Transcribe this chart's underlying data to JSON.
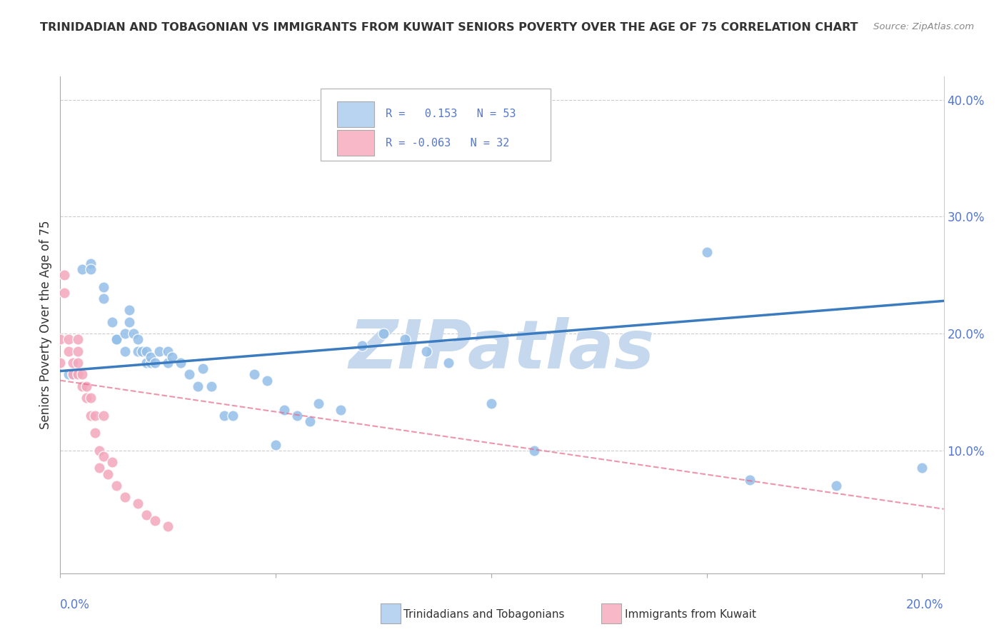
{
  "title": "TRINIDADIAN AND TOBAGONIAN VS IMMIGRANTS FROM KUWAIT SENIORS POVERTY OVER THE AGE OF 75 CORRELATION CHART",
  "source": "Source: ZipAtlas.com",
  "ylabel": "Seniors Poverty Over the Age of 75",
  "watermark": "ZIPatlas",
  "xlim": [
    0.0,
    0.205
  ],
  "ylim": [
    -0.005,
    0.42
  ],
  "blue_scatter": [
    [
      0.002,
      0.165
    ],
    [
      0.003,
      0.165
    ],
    [
      0.005,
      0.255
    ],
    [
      0.007,
      0.26
    ],
    [
      0.007,
      0.255
    ],
    [
      0.01,
      0.24
    ],
    [
      0.01,
      0.23
    ],
    [
      0.012,
      0.21
    ],
    [
      0.013,
      0.195
    ],
    [
      0.013,
      0.195
    ],
    [
      0.015,
      0.2
    ],
    [
      0.015,
      0.185
    ],
    [
      0.016,
      0.22
    ],
    [
      0.016,
      0.21
    ],
    [
      0.017,
      0.2
    ],
    [
      0.018,
      0.195
    ],
    [
      0.018,
      0.185
    ],
    [
      0.019,
      0.185
    ],
    [
      0.02,
      0.185
    ],
    [
      0.02,
      0.175
    ],
    [
      0.021,
      0.175
    ],
    [
      0.021,
      0.18
    ],
    [
      0.022,
      0.175
    ],
    [
      0.023,
      0.185
    ],
    [
      0.025,
      0.185
    ],
    [
      0.025,
      0.175
    ],
    [
      0.026,
      0.18
    ],
    [
      0.028,
      0.175
    ],
    [
      0.03,
      0.165
    ],
    [
      0.032,
      0.155
    ],
    [
      0.033,
      0.17
    ],
    [
      0.035,
      0.155
    ],
    [
      0.038,
      0.13
    ],
    [
      0.04,
      0.13
    ],
    [
      0.045,
      0.165
    ],
    [
      0.048,
      0.16
    ],
    [
      0.05,
      0.105
    ],
    [
      0.052,
      0.135
    ],
    [
      0.055,
      0.13
    ],
    [
      0.058,
      0.125
    ],
    [
      0.06,
      0.14
    ],
    [
      0.065,
      0.135
    ],
    [
      0.07,
      0.19
    ],
    [
      0.075,
      0.2
    ],
    [
      0.08,
      0.195
    ],
    [
      0.085,
      0.185
    ],
    [
      0.09,
      0.175
    ],
    [
      0.1,
      0.14
    ],
    [
      0.11,
      0.1
    ],
    [
      0.15,
      0.27
    ],
    [
      0.16,
      0.075
    ],
    [
      0.18,
      0.07
    ],
    [
      0.2,
      0.085
    ]
  ],
  "pink_scatter": [
    [
      0.0,
      0.195
    ],
    [
      0.0,
      0.175
    ],
    [
      0.001,
      0.25
    ],
    [
      0.001,
      0.235
    ],
    [
      0.002,
      0.195
    ],
    [
      0.002,
      0.185
    ],
    [
      0.003,
      0.175
    ],
    [
      0.003,
      0.165
    ],
    [
      0.004,
      0.195
    ],
    [
      0.004,
      0.185
    ],
    [
      0.004,
      0.175
    ],
    [
      0.004,
      0.165
    ],
    [
      0.005,
      0.165
    ],
    [
      0.005,
      0.155
    ],
    [
      0.006,
      0.155
    ],
    [
      0.006,
      0.145
    ],
    [
      0.007,
      0.145
    ],
    [
      0.007,
      0.13
    ],
    [
      0.008,
      0.13
    ],
    [
      0.008,
      0.115
    ],
    [
      0.009,
      0.1
    ],
    [
      0.009,
      0.085
    ],
    [
      0.01,
      0.13
    ],
    [
      0.01,
      0.095
    ],
    [
      0.011,
      0.08
    ],
    [
      0.012,
      0.09
    ],
    [
      0.013,
      0.07
    ],
    [
      0.015,
      0.06
    ],
    [
      0.018,
      0.055
    ],
    [
      0.02,
      0.045
    ],
    [
      0.022,
      0.04
    ],
    [
      0.025,
      0.035
    ]
  ],
  "blue_line_x": [
    0.0,
    0.205
  ],
  "blue_line_y": [
    0.168,
    0.228
  ],
  "pink_line_x": [
    0.0,
    0.205
  ],
  "pink_line_y": [
    0.16,
    0.05
  ],
  "blue_scatter_color": "#93bfe8",
  "pink_scatter_color": "#f4a7bc",
  "blue_line_color": "#3b7bbf",
  "pink_line_color": "#e8688a",
  "grid_color": "#cccccc",
  "background_color": "#ffffff",
  "title_color": "#333333",
  "source_color": "#888888",
  "axis_label_color": "#5577cc",
  "watermark_color": "#c5d8ee",
  "legend_box_blue": "#b8d4f0",
  "legend_box_pink": "#f8b8c8"
}
